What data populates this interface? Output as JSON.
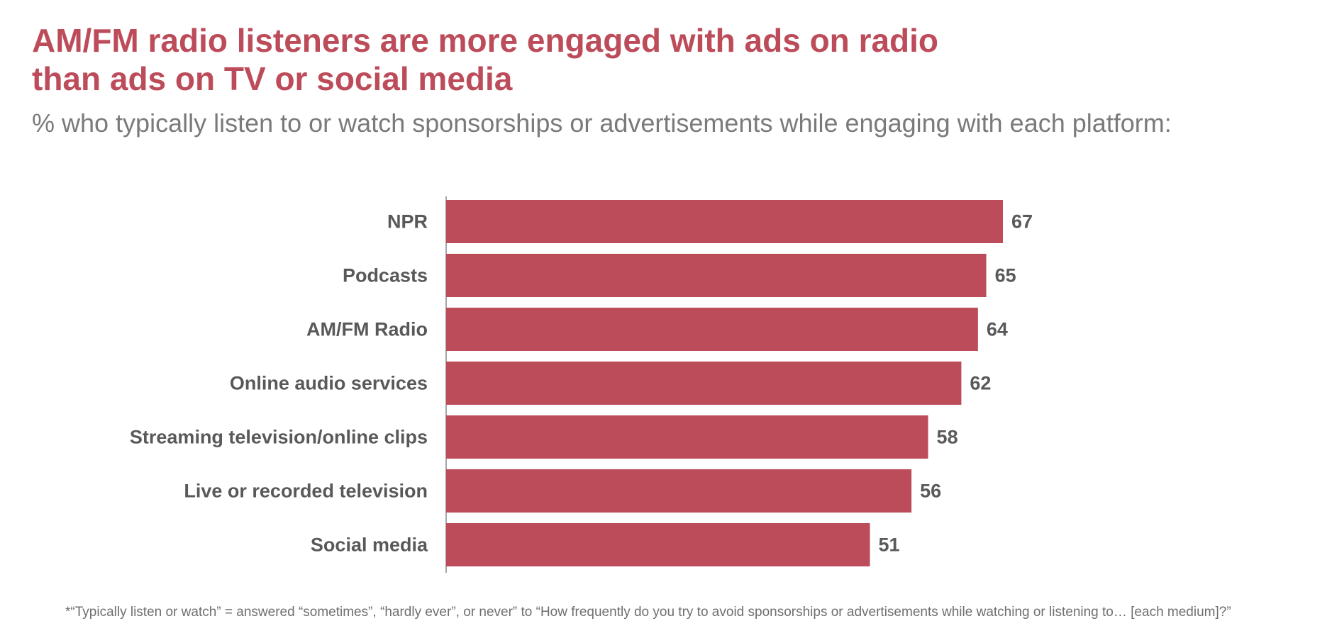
{
  "header": {
    "title_line1": "AM/FM radio listeners are more engaged with ads on radio",
    "title_line2": "than ads on TV or social media",
    "subtitle": "% who typically listen to or watch sponsorships or advertisements while engaging with each platform:"
  },
  "footnote": "*“Typically listen or watch” = answered “sometimes”, “hardly ever”, or never” to “How frequently do you try to avoid sponsorships or advertisements while watching or listening to… [each medium]?”",
  "colors": {
    "bar": "#bd4c5a",
    "title": "#bd4c5a",
    "subtitle": "#7a7a7a",
    "labels": "#595959",
    "axis": "#a6a6a6"
  },
  "chart_data": {
    "type": "bar",
    "orientation": "horizontal",
    "title": "AM/FM radio listeners are more engaged with ads on radio than ads on TV or social media",
    "subtitle": "% who typically listen to or watch sponsorships or advertisements while engaging with each platform:",
    "categories": [
      "NPR",
      "Podcasts",
      "AM/FM Radio",
      "Online audio services",
      "Streaming television/online clips",
      "Live or recorded television",
      "Social media"
    ],
    "values": [
      67,
      65,
      64,
      62,
      58,
      56,
      51
    ],
    "xlim": [
      0,
      67
    ],
    "grid": false,
    "legend": "none",
    "data_labels": true
  }
}
